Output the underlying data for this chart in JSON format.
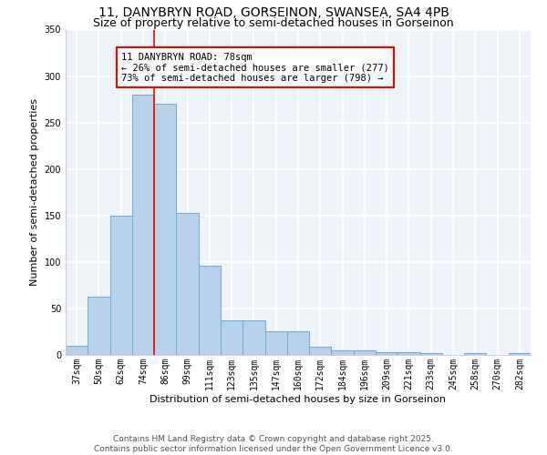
{
  "title_line1": "11, DANYBRYN ROAD, GORSEINON, SWANSEA, SA4 4PB",
  "title_line2": "Size of property relative to semi-detached houses in Gorseinon",
  "xlabel": "Distribution of semi-detached houses by size in Gorseinon",
  "ylabel": "Number of semi-detached properties",
  "categories": [
    "37sqm",
    "50sqm",
    "62sqm",
    "74sqm",
    "86sqm",
    "99sqm",
    "111sqm",
    "123sqm",
    "135sqm",
    "147sqm",
    "160sqm",
    "172sqm",
    "184sqm",
    "196sqm",
    "209sqm",
    "221sqm",
    "233sqm",
    "245sqm",
    "258sqm",
    "270sqm",
    "282sqm"
  ],
  "values": [
    10,
    63,
    150,
    280,
    270,
    153,
    96,
    37,
    37,
    25,
    25,
    9,
    5,
    5,
    3,
    3,
    2,
    0,
    2,
    0,
    2
  ],
  "bar_color": "#b8d0ea",
  "bar_edge_color": "#6aaad4",
  "vline_x": 3.5,
  "vline_color": "red",
  "annotation_text": "11 DANYBRYN ROAD: 78sqm\n← 26% of semi-detached houses are smaller (277)\n73% of semi-detached houses are larger (798) →",
  "annotation_box_color": "white",
  "annotation_box_edgecolor": "red",
  "ylim": [
    0,
    350
  ],
  "yticks": [
    0,
    50,
    100,
    150,
    200,
    250,
    300,
    350
  ],
  "background_color": "#eef2f9",
  "grid_color": "white",
  "footer_text": "Contains HM Land Registry data © Crown copyright and database right 2025.\nContains public sector information licensed under the Open Government Licence v3.0.",
  "title_fontsize": 10,
  "subtitle_fontsize": 9,
  "axis_label_fontsize": 8,
  "tick_fontsize": 7,
  "annotation_fontsize": 7.5,
  "footer_fontsize": 6.5
}
